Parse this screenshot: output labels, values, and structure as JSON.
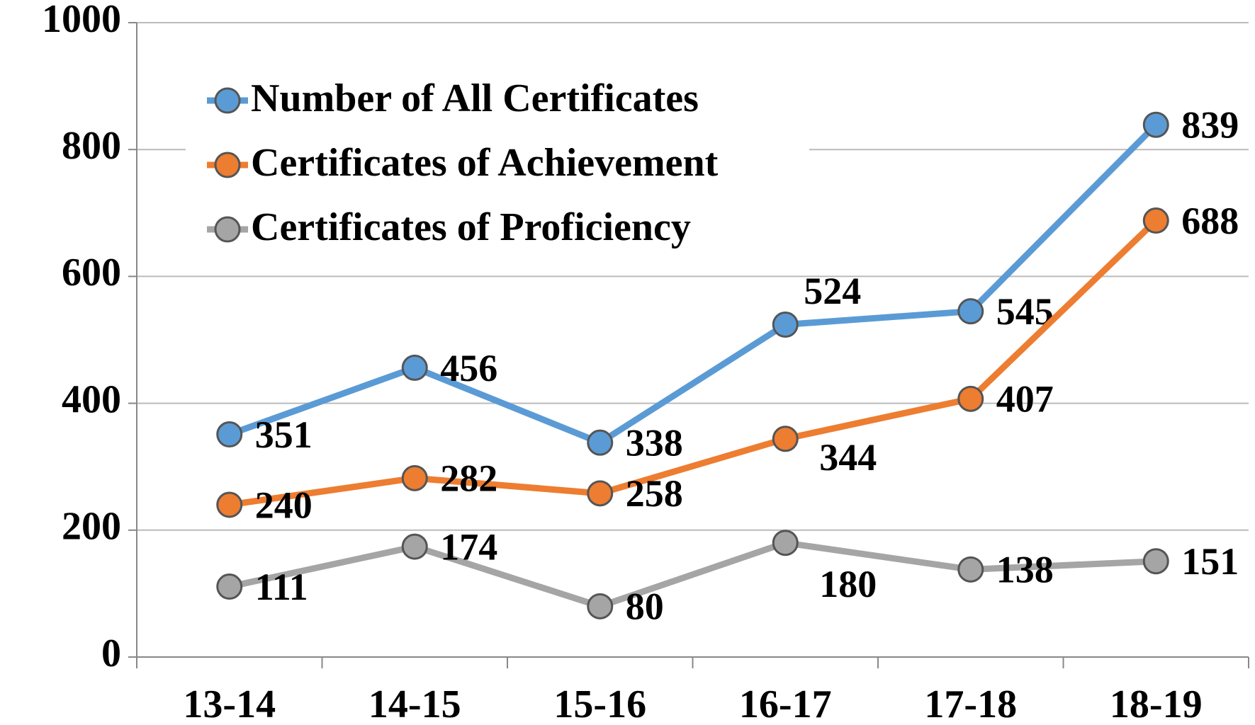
{
  "chart_data": {
    "type": "line",
    "categories": [
      "13-14",
      "14-15",
      "15-16",
      "16-17",
      "17-18",
      "18-19"
    ],
    "series": [
      {
        "name": "Number of All Certificates",
        "color": "#5b9bd5",
        "values": [
          351,
          456,
          338,
          524,
          545,
          839
        ]
      },
      {
        "name": "Certificates of Achievement",
        "color": "#ed7d31",
        "values": [
          240,
          282,
          258,
          344,
          407,
          688
        ]
      },
      {
        "name": "Certificates of Proficiency",
        "color": "#a5a5a5",
        "values": [
          111,
          174,
          80,
          180,
          138,
          151
        ]
      }
    ],
    "ylim": [
      0,
      1000
    ],
    "yticks": [
      0,
      200,
      400,
      600,
      800,
      1000
    ],
    "grid": true,
    "legend": "upper left"
  }
}
